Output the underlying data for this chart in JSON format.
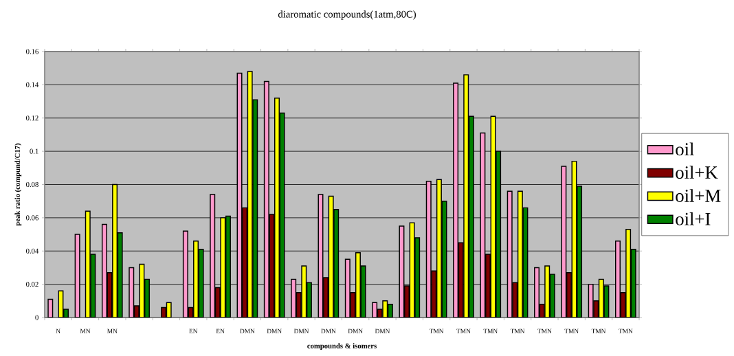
{
  "chart_data": {
    "type": "bar",
    "title": "diaromatic compounds(1atm,80C)",
    "xlabel": "compounds & isomers",
    "ylabel": "peak ratio (compund/C17)",
    "categories": [
      "N",
      "MN",
      "MN",
      null,
      null,
      "EN",
      "EN",
      "DMN",
      "DMN",
      "DMN",
      "DMN",
      "DMN",
      "DMN",
      null,
      "TMN",
      "TMN",
      "TMN",
      "TMN",
      "TMN",
      "TMN",
      "TMN",
      "TMN"
    ],
    "series": [
      {
        "name": "oil",
        "color": "#ff99cc",
        "values": [
          0.011,
          0.05,
          0.056,
          0.03,
          null,
          0.052,
          0.074,
          0.147,
          0.142,
          0.023,
          0.074,
          0.035,
          0.009,
          0.055,
          0.082,
          0.141,
          0.111,
          0.076,
          0.03,
          0.091,
          0.02,
          0.046
        ]
      },
      {
        "name": "oil+K",
        "color": "#800000",
        "values": [
          null,
          null,
          0.027,
          0.007,
          0.006,
          0.006,
          0.018,
          0.066,
          0.062,
          0.015,
          0.024,
          0.015,
          0.005,
          0.019,
          0.028,
          0.045,
          0.038,
          0.021,
          0.008,
          0.027,
          0.01,
          0.015
        ]
      },
      {
        "name": "oil+M",
        "color": "#ffff00",
        "values": [
          0.016,
          0.064,
          0.08,
          0.032,
          0.009,
          0.046,
          0.06,
          0.148,
          0.132,
          0.031,
          0.073,
          0.039,
          0.01,
          0.057,
          0.083,
          0.146,
          0.121,
          0.076,
          0.031,
          0.094,
          0.023,
          0.053
        ]
      },
      {
        "name": "oil+I",
        "color": "#008000",
        "values": [
          0.005,
          0.038,
          0.051,
          0.023,
          null,
          0.041,
          0.061,
          0.131,
          0.123,
          0.021,
          0.065,
          0.031,
          0.008,
          0.048,
          0.07,
          0.121,
          0.1,
          0.066,
          0.026,
          0.079,
          0.019,
          0.041
        ]
      }
    ],
    "ylim": [
      0,
      0.16
    ],
    "yticks": [
      0,
      0.02,
      0.04,
      0.06,
      0.08,
      0.1,
      0.12,
      0.14,
      0.16
    ],
    "grid": "y",
    "legend": "right"
  }
}
